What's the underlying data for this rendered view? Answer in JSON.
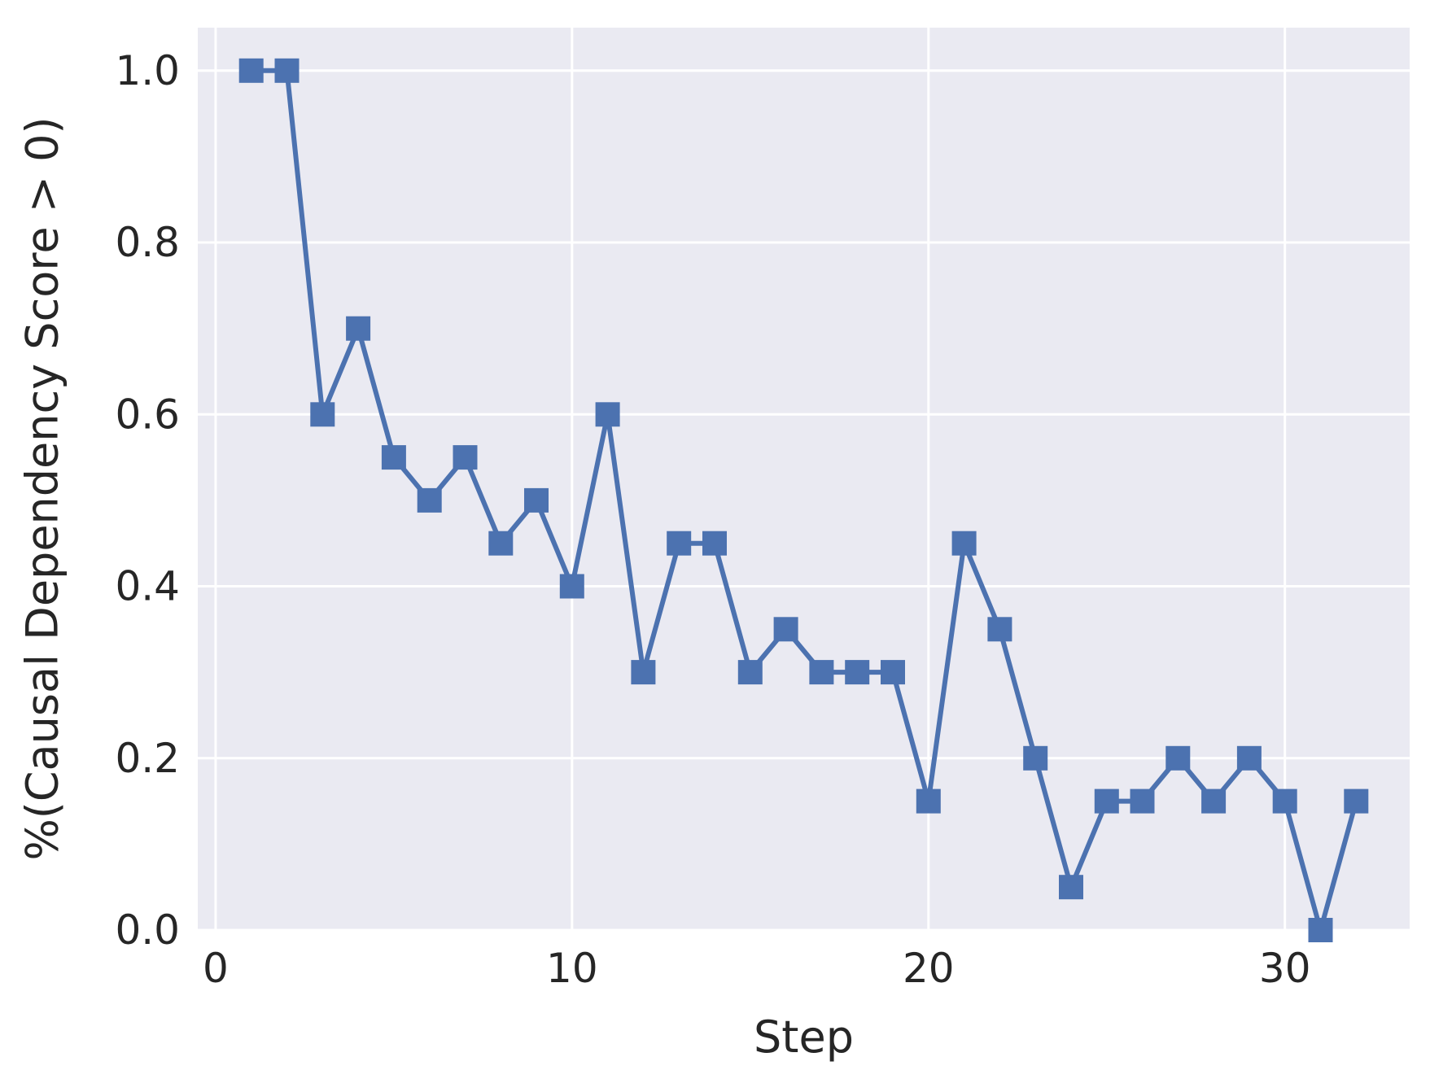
{
  "chart_data": {
    "type": "line",
    "title": "",
    "xlabel": "Step",
    "ylabel": "%(Causal Dependency Score > 0)",
    "xlim": [
      -0.5,
      33.5
    ],
    "ylim": [
      0.0,
      1.05
    ],
    "xticks": [
      0,
      10,
      20,
      30
    ],
    "xtick_labels": [
      "0",
      "10",
      "20",
      "30"
    ],
    "yticks": [
      0.0,
      0.2,
      0.4,
      0.6,
      0.8,
      1.0
    ],
    "ytick_labels": [
      "0.0",
      "0.2",
      "0.4",
      "0.6",
      "0.8",
      "1.0"
    ],
    "grid": true,
    "background": "#EAEAF2",
    "series": [
      {
        "color": "#4C72B0",
        "marker": "square",
        "x": [
          1,
          2,
          3,
          4,
          5,
          6,
          7,
          8,
          9,
          10,
          11,
          12,
          13,
          14,
          15,
          16,
          17,
          18,
          19,
          20,
          21,
          22,
          23,
          24,
          25,
          26,
          27,
          28,
          29,
          30,
          31,
          32
        ],
        "y": [
          1.0,
          1.0,
          0.6,
          0.7,
          0.55,
          0.5,
          0.55,
          0.45,
          0.5,
          0.4,
          0.6,
          0.3,
          0.45,
          0.45,
          0.3,
          0.35,
          0.3,
          0.3,
          0.3,
          0.15,
          0.45,
          0.35,
          0.2,
          0.05,
          0.15,
          0.15,
          0.2,
          0.15,
          0.2,
          0.15,
          0.0,
          0.15
        ]
      }
    ]
  }
}
